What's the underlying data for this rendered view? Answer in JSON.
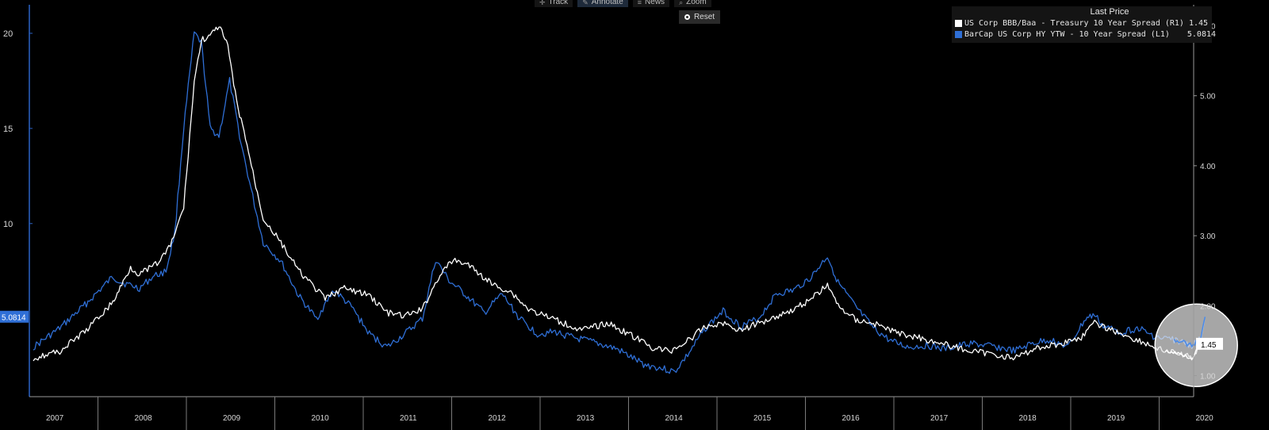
{
  "toolbar": {
    "items": [
      {
        "label": "Track",
        "icon": "crosshair-icon"
      },
      {
        "label": "Annotate",
        "icon": "pencil-icon"
      },
      {
        "label": "News",
        "icon": "news-icon"
      },
      {
        "label": "Zoom",
        "icon": "magnifier-icon"
      }
    ],
    "reset_label": "Reset"
  },
  "legend": {
    "title": "Last Price",
    "entries": [
      {
        "name": "US Corp BBB/Baa - Treasury 10 Year Spread  (R1)",
        "value": "1.45",
        "color": "#ffffff"
      },
      {
        "name": "BarCap US Corp HY YTW - 10 Year Spread  (L1)",
        "value": "5.0814",
        "color": "#2f6fd6"
      }
    ]
  },
  "chart_data": {
    "type": "line",
    "x_ticks": [
      "2007",
      "2008",
      "2009",
      "2010",
      "2011",
      "2012",
      "2013",
      "2014",
      "2015",
      "2016",
      "2017",
      "2018",
      "2019",
      "2020"
    ],
    "left_axis": {
      "ticks": [
        "10",
        "15",
        "20"
      ],
      "values": [
        10,
        15,
        20
      ],
      "range": [
        0.9,
        21.5
      ]
    },
    "right_axis": {
      "ticks": [
        "1.00",
        "2.00",
        "3.00",
        "4.00",
        "5.00",
        "6.00"
      ],
      "values": [
        1,
        2,
        3,
        4,
        5,
        6
      ],
      "range": [
        0.7,
        6.3
      ]
    },
    "last_value_labels": {
      "left": "5.0814",
      "right": "1.45"
    },
    "series": [
      {
        "name": "US Corp BBB/Baa - Treasury 10 Year Spread  (R1)",
        "axis": "right",
        "color": "#ffffff",
        "points": [
          [
            2007.0,
            1.25
          ],
          [
            2007.3,
            1.35
          ],
          [
            2007.6,
            1.65
          ],
          [
            2007.9,
            2.05
          ],
          [
            2008.0,
            2.3
          ],
          [
            2008.1,
            2.55
          ],
          [
            2008.2,
            2.45
          ],
          [
            2008.4,
            2.6
          ],
          [
            2008.55,
            2.85
          ],
          [
            2008.7,
            3.4
          ],
          [
            2008.82,
            5.2
          ],
          [
            2008.9,
            5.8
          ],
          [
            2009.0,
            5.85
          ],
          [
            2009.1,
            6.0
          ],
          [
            2009.2,
            5.7
          ],
          [
            2009.3,
            4.9
          ],
          [
            2009.4,
            4.4
          ],
          [
            2009.5,
            3.8
          ],
          [
            2009.6,
            3.25
          ],
          [
            2009.8,
            2.9
          ],
          [
            2010.0,
            2.5
          ],
          [
            2010.3,
            2.1
          ],
          [
            2010.5,
            2.25
          ],
          [
            2010.8,
            2.15
          ],
          [
            2011.0,
            1.9
          ],
          [
            2011.2,
            1.85
          ],
          [
            2011.4,
            1.95
          ],
          [
            2011.6,
            2.45
          ],
          [
            2011.75,
            2.65
          ],
          [
            2011.9,
            2.6
          ],
          [
            2012.1,
            2.4
          ],
          [
            2012.2,
            2.3
          ],
          [
            2012.4,
            2.2
          ],
          [
            2012.6,
            1.95
          ],
          [
            2012.8,
            1.85
          ],
          [
            2013.0,
            1.75
          ],
          [
            2013.2,
            1.65
          ],
          [
            2013.5,
            1.75
          ],
          [
            2013.8,
            1.55
          ],
          [
            2014.0,
            1.4
          ],
          [
            2014.2,
            1.35
          ],
          [
            2014.4,
            1.5
          ],
          [
            2014.6,
            1.7
          ],
          [
            2014.8,
            1.75
          ],
          [
            2015.0,
            1.65
          ],
          [
            2015.3,
            1.8
          ],
          [
            2015.6,
            1.95
          ],
          [
            2015.8,
            2.1
          ],
          [
            2015.98,
            2.3
          ],
          [
            2016.1,
            2.0
          ],
          [
            2016.3,
            1.8
          ],
          [
            2016.5,
            1.75
          ],
          [
            2016.8,
            1.6
          ],
          [
            2017.0,
            1.55
          ],
          [
            2017.3,
            1.45
          ],
          [
            2017.6,
            1.35
          ],
          [
            2017.9,
            1.3
          ],
          [
            2018.1,
            1.25
          ],
          [
            2018.35,
            1.4
          ],
          [
            2018.6,
            1.45
          ],
          [
            2018.85,
            1.55
          ],
          [
            2019.0,
            1.75
          ],
          [
            2019.2,
            1.65
          ],
          [
            2019.4,
            1.55
          ],
          [
            2019.6,
            1.45
          ],
          [
            2019.8,
            1.35
          ],
          [
            2020.0,
            1.3
          ],
          [
            2020.1,
            1.25
          ],
          [
            2020.2,
            1.45
          ]
        ]
      },
      {
        "name": "BarCap US Corp HY YTW - 10 Year Spread  (L1)",
        "axis": "left",
        "color": "#2f6fd6",
        "points": [
          [
            2007.0,
            3.5
          ],
          [
            2007.3,
            4.5
          ],
          [
            2007.6,
            5.8
          ],
          [
            2007.9,
            7.2
          ],
          [
            2008.0,
            6.9
          ],
          [
            2008.2,
            6.6
          ],
          [
            2008.35,
            7.2
          ],
          [
            2008.5,
            7.5
          ],
          [
            2008.6,
            9.5
          ],
          [
            2008.7,
            15.0
          ],
          [
            2008.82,
            20.0
          ],
          [
            2008.9,
            19.5
          ],
          [
            2009.0,
            15.0
          ],
          [
            2009.1,
            14.6
          ],
          [
            2009.22,
            17.5
          ],
          [
            2009.35,
            14.2
          ],
          [
            2009.5,
            11.0
          ],
          [
            2009.6,
            9.0
          ],
          [
            2009.8,
            8.0
          ],
          [
            2010.0,
            6.2
          ],
          [
            2010.2,
            5.0
          ],
          [
            2010.4,
            6.5
          ],
          [
            2010.6,
            5.6
          ],
          [
            2010.8,
            4.2
          ],
          [
            2011.0,
            3.5
          ],
          [
            2011.2,
            4.2
          ],
          [
            2011.4,
            5.0
          ],
          [
            2011.55,
            8.1
          ],
          [
            2011.7,
            7.0
          ],
          [
            2011.9,
            6.2
          ],
          [
            2012.1,
            5.3
          ],
          [
            2012.3,
            6.3
          ],
          [
            2012.5,
            5.0
          ],
          [
            2012.7,
            4.2
          ],
          [
            2012.9,
            4.3
          ],
          [
            2013.1,
            4.0
          ],
          [
            2013.3,
            3.8
          ],
          [
            2013.6,
            3.4
          ],
          [
            2013.9,
            2.6
          ],
          [
            2014.1,
            2.4
          ],
          [
            2014.25,
            2.2
          ],
          [
            2014.4,
            3.1
          ],
          [
            2014.6,
            4.5
          ],
          [
            2014.8,
            5.4
          ],
          [
            2015.0,
            4.6
          ],
          [
            2015.2,
            5.0
          ],
          [
            2015.4,
            6.3
          ],
          [
            2015.6,
            6.5
          ],
          [
            2015.8,
            7.2
          ],
          [
            2015.98,
            8.3
          ],
          [
            2016.1,
            6.9
          ],
          [
            2016.3,
            5.6
          ],
          [
            2016.5,
            4.5
          ],
          [
            2016.7,
            3.8
          ],
          [
            2016.9,
            3.5
          ],
          [
            2017.1,
            3.6
          ],
          [
            2017.3,
            3.4
          ],
          [
            2017.6,
            3.7
          ],
          [
            2017.9,
            3.5
          ],
          [
            2018.1,
            3.3
          ],
          [
            2018.3,
            3.7
          ],
          [
            2018.5,
            3.9
          ],
          [
            2018.7,
            3.5
          ],
          [
            2018.9,
            5.0
          ],
          [
            2019.0,
            5.2
          ],
          [
            2019.1,
            4.6
          ],
          [
            2019.3,
            4.3
          ],
          [
            2019.5,
            4.5
          ],
          [
            2019.7,
            4.0
          ],
          [
            2019.9,
            3.9
          ],
          [
            2020.1,
            3.6
          ],
          [
            2020.2,
            3.9
          ],
          [
            2020.25,
            5.1
          ]
        ]
      }
    ],
    "highlight": {
      "type": "circle",
      "center_year": 2020.15,
      "center_value_left": 3.6,
      "color": "#e6e6e6"
    }
  }
}
